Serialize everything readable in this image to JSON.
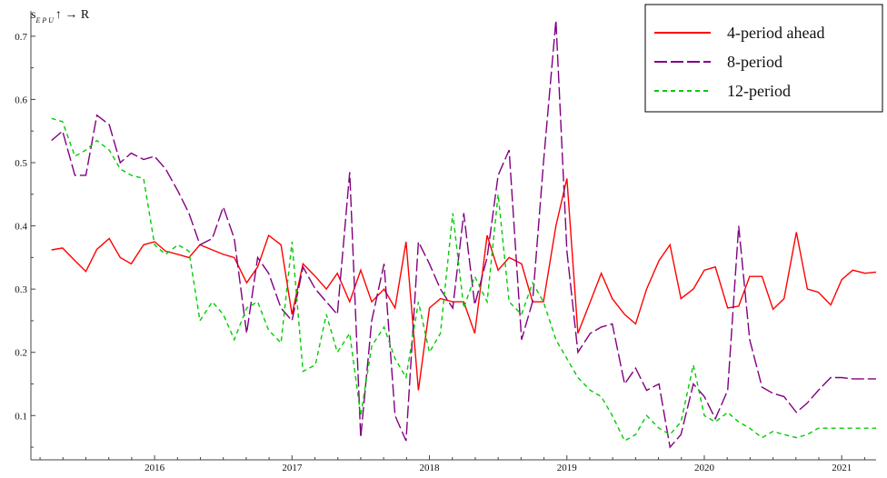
{
  "chart_data": {
    "type": "line",
    "title": {
      "prefix": "s",
      "subscript": "E P U",
      "suffix": "↑ → R"
    },
    "xlim": [
      2015.1,
      2021.25
    ],
    "ylim": [
      0.03,
      0.74
    ],
    "x_ticks": [
      2016,
      2017,
      2018,
      2019,
      2020,
      2021
    ],
    "y_ticks": [
      0.1,
      0.2,
      0.3,
      0.4,
      0.5,
      0.6,
      0.7
    ],
    "legend_position": "top-right",
    "grid": false,
    "series": [
      {
        "name": "4-period ahead",
        "color": "#ff0000",
        "dash": "solid",
        "x": [
          2015.25,
          2015.33,
          2015.42,
          2015.5,
          2015.58,
          2015.67,
          2015.75,
          2015.83,
          2015.92,
          2016.0,
          2016.08,
          2016.17,
          2016.25,
          2016.33,
          2016.42,
          2016.5,
          2016.58,
          2016.67,
          2016.75,
          2016.83,
          2016.92,
          2017.0,
          2017.08,
          2017.17,
          2017.25,
          2017.33,
          2017.42,
          2017.5,
          2017.58,
          2017.67,
          2017.75,
          2017.83,
          2017.92,
          2018.0,
          2018.08,
          2018.17,
          2018.25,
          2018.33,
          2018.42,
          2018.5,
          2018.58,
          2018.67,
          2018.75,
          2018.83,
          2018.92,
          2019.0,
          2019.08,
          2019.17,
          2019.25,
          2019.33,
          2019.42,
          2019.5,
          2019.58,
          2019.67,
          2019.75,
          2019.83,
          2019.92,
          2020.0,
          2020.08,
          2020.17,
          2020.25,
          2020.33,
          2020.42,
          2020.5,
          2020.58,
          2020.67,
          2020.75,
          2020.83,
          2020.92,
          2021.0,
          2021.08,
          2021.17,
          2021.25
        ],
        "y": [
          0.362,
          0.365,
          0.345,
          0.328,
          0.363,
          0.38,
          0.35,
          0.34,
          0.37,
          0.375,
          0.36,
          0.355,
          0.35,
          0.37,
          0.362,
          0.355,
          0.35,
          0.31,
          0.335,
          0.385,
          0.37,
          0.26,
          0.34,
          0.32,
          0.3,
          0.325,
          0.28,
          0.33,
          0.28,
          0.3,
          0.27,
          0.375,
          0.14,
          0.27,
          0.285,
          0.28,
          0.28,
          0.23,
          0.385,
          0.33,
          0.35,
          0.34,
          0.28,
          0.28,
          0.4,
          0.475,
          0.23,
          0.28,
          0.325,
          0.285,
          0.26,
          0.245,
          0.3,
          0.345,
          0.37,
          0.285,
          0.3,
          0.33,
          0.335,
          0.27,
          0.273,
          0.32,
          0.32,
          0.268,
          0.285,
          0.39,
          0.3,
          0.295,
          0.275,
          0.315,
          0.33,
          0.325,
          0.327
        ]
      },
      {
        "name": "8-period",
        "color": "#800080",
        "dash": "long",
        "x": [
          2015.25,
          2015.33,
          2015.42,
          2015.5,
          2015.58,
          2015.67,
          2015.75,
          2015.83,
          2015.92,
          2016.0,
          2016.08,
          2016.17,
          2016.25,
          2016.33,
          2016.42,
          2016.5,
          2016.58,
          2016.67,
          2016.75,
          2016.83,
          2016.92,
          2017.0,
          2017.08,
          2017.17,
          2017.25,
          2017.33,
          2017.42,
          2017.5,
          2017.58,
          2017.67,
          2017.75,
          2017.83,
          2017.92,
          2018.0,
          2018.08,
          2018.17,
          2018.25,
          2018.33,
          2018.42,
          2018.5,
          2018.58,
          2018.67,
          2018.75,
          2018.83,
          2018.92,
          2019.0,
          2019.08,
          2019.17,
          2019.25,
          2019.33,
          2019.42,
          2019.5,
          2019.58,
          2019.67,
          2019.75,
          2019.83,
          2019.92,
          2020.0,
          2020.08,
          2020.17,
          2020.25,
          2020.33,
          2020.42,
          2020.5,
          2020.58,
          2020.67,
          2020.75,
          2020.83,
          2020.92,
          2021.0,
          2021.08,
          2021.17,
          2021.25
        ],
        "y": [
          0.535,
          0.55,
          0.48,
          0.48,
          0.575,
          0.56,
          0.5,
          0.515,
          0.505,
          0.51,
          0.49,
          0.455,
          0.42,
          0.37,
          0.38,
          0.43,
          0.38,
          0.23,
          0.35,
          0.325,
          0.27,
          0.25,
          0.335,
          0.3,
          0.28,
          0.26,
          0.485,
          0.065,
          0.25,
          0.34,
          0.1,
          0.06,
          0.375,
          0.34,
          0.3,
          0.27,
          0.42,
          0.275,
          0.35,
          0.48,
          0.52,
          0.22,
          0.28,
          0.5,
          0.725,
          0.36,
          0.2,
          0.23,
          0.24,
          0.245,
          0.15,
          0.175,
          0.14,
          0.15,
          0.05,
          0.07,
          0.15,
          0.13,
          0.095,
          0.14,
          0.4,
          0.22,
          0.145,
          0.135,
          0.13,
          0.105,
          0.12,
          0.14,
          0.16,
          0.16,
          0.158,
          0.158,
          0.158
        ]
      },
      {
        "name": "12-period",
        "color": "#00cc00",
        "dash": "short",
        "x": [
          2015.25,
          2015.33,
          2015.42,
          2015.5,
          2015.58,
          2015.67,
          2015.75,
          2015.83,
          2015.92,
          2016.0,
          2016.08,
          2016.17,
          2016.25,
          2016.33,
          2016.42,
          2016.5,
          2016.58,
          2016.67,
          2016.75,
          2016.83,
          2016.92,
          2017.0,
          2017.08,
          2017.17,
          2017.25,
          2017.33,
          2017.42,
          2017.5,
          2017.58,
          2017.67,
          2017.75,
          2017.83,
          2017.92,
          2018.0,
          2018.08,
          2018.17,
          2018.25,
          2018.33,
          2018.42,
          2018.5,
          2018.58,
          2018.67,
          2018.75,
          2018.83,
          2018.92,
          2019.0,
          2019.08,
          2019.17,
          2019.25,
          2019.33,
          2019.42,
          2019.5,
          2019.58,
          2019.67,
          2019.75,
          2019.83,
          2019.92,
          2020.0,
          2020.08,
          2020.17,
          2020.25,
          2020.33,
          2020.42,
          2020.5,
          2020.58,
          2020.67,
          2020.75,
          2020.83,
          2020.92,
          2021.0,
          2021.08,
          2021.17,
          2021.25
        ],
        "y": [
          0.57,
          0.565,
          0.51,
          0.52,
          0.535,
          0.52,
          0.49,
          0.48,
          0.475,
          0.37,
          0.355,
          0.37,
          0.36,
          0.25,
          0.28,
          0.26,
          0.22,
          0.27,
          0.28,
          0.235,
          0.215,
          0.375,
          0.17,
          0.18,
          0.26,
          0.2,
          0.23,
          0.1,
          0.21,
          0.24,
          0.19,
          0.16,
          0.28,
          0.2,
          0.23,
          0.42,
          0.27,
          0.32,
          0.28,
          0.45,
          0.28,
          0.26,
          0.31,
          0.28,
          0.22,
          0.19,
          0.16,
          0.14,
          0.13,
          0.1,
          0.06,
          0.07,
          0.1,
          0.08,
          0.07,
          0.09,
          0.18,
          0.1,
          0.09,
          0.105,
          0.09,
          0.08,
          0.065,
          0.075,
          0.07,
          0.065,
          0.07,
          0.08,
          0.08,
          0.08,
          0.08,
          0.08,
          0.08
        ]
      }
    ]
  }
}
